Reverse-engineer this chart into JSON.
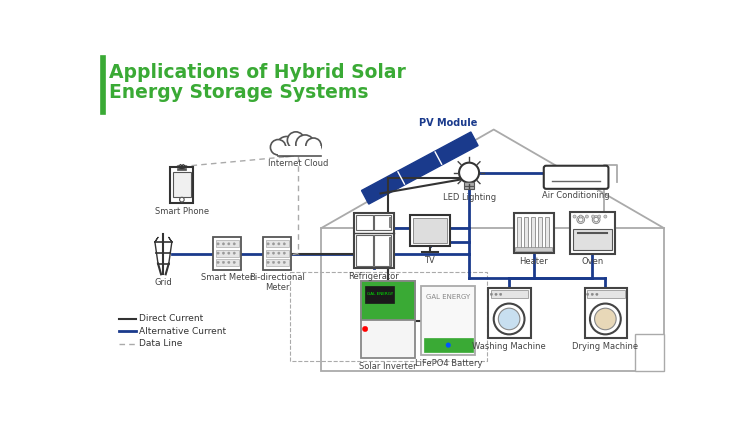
{
  "title_line1": "Applications of Hybrid Solar",
  "title_line2": "Energy Storage Systems",
  "title_color": "#3aaa35",
  "title_bar_color": "#3aaa35",
  "background_color": "#ffffff",
  "ac_line_color": "#1a3a8c",
  "dc_line_color": "#333333",
  "data_line_color": "#aaaaaa",
  "pv_color": "#1a3a8c",
  "pv_label": "PV Module",
  "cloud_label": "Internet Cloud",
  "smartphone_label": "Smart Phone",
  "grid_label": "Grid",
  "smart_meter_label": "Smart Meter",
  "bi_meter_label": "Bi-directional\nMeter",
  "inverter_label": "Solar Inverter",
  "battery_label": "LiFePO4 Battery",
  "led_label": "LED Lighting",
  "ac_label": "Air Conditioning",
  "fridge_label": "Refrigerator",
  "tv_label": "TV",
  "heater_label": "Heater",
  "oven_label": "Oven",
  "washer_label": "Washing Machine",
  "dryer_label": "Drying Machine",
  "legend_dc": "Direct Current",
  "legend_ac": "Alternative Current",
  "legend_data": "Data Line",
  "green_color": "#3aaa35"
}
